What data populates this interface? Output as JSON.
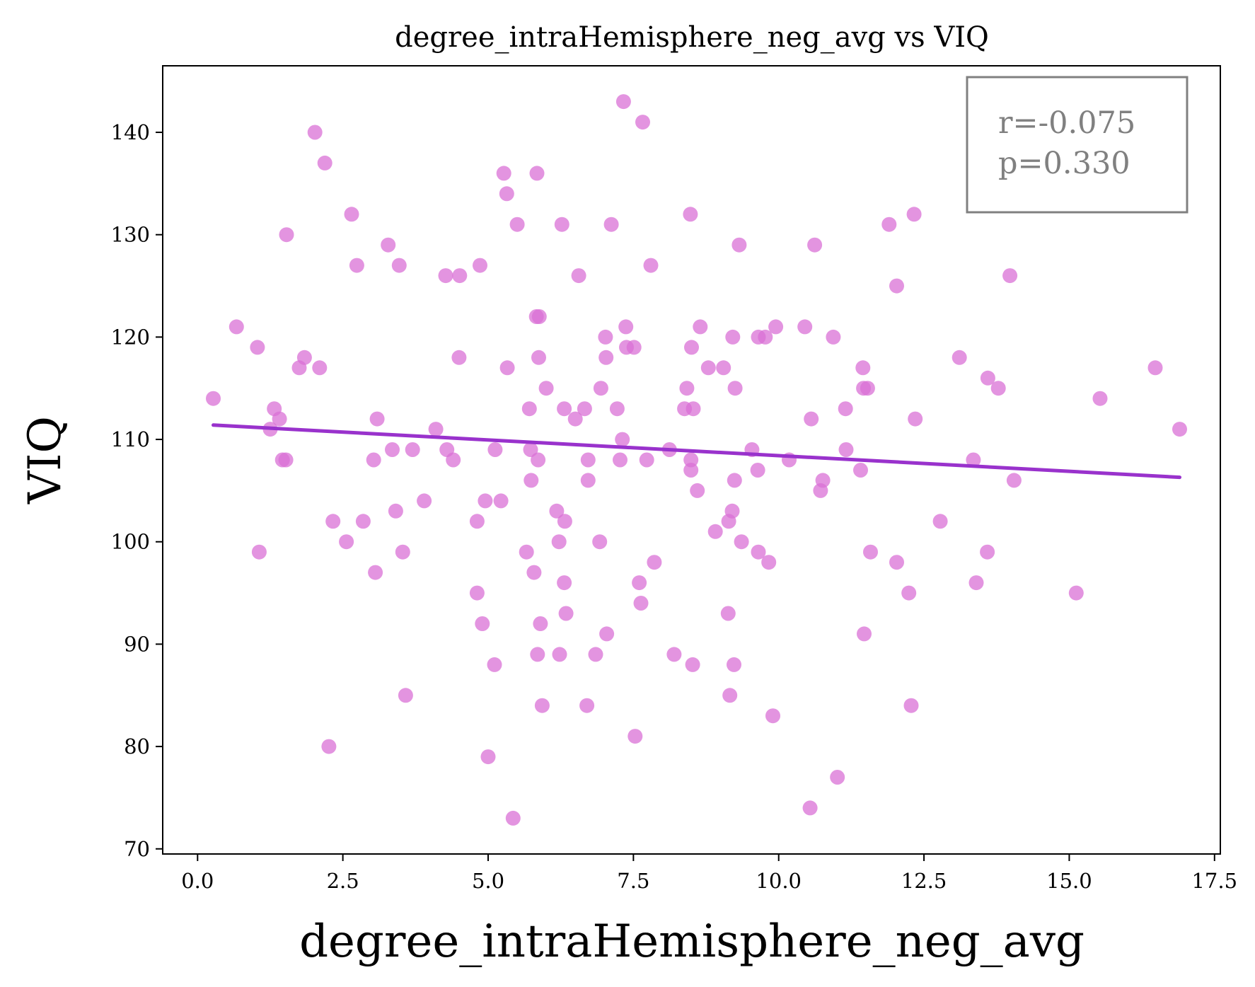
{
  "chart_data": {
    "type": "scatter",
    "title": "degree_intraHemisphere_neg_avg vs VIQ",
    "xlabel": "degree_intraHemisphere_neg_avg",
    "ylabel": "VIQ",
    "xlim": [
      -0.6,
      17.6
    ],
    "ylim": [
      69.5,
      146.5
    ],
    "xticks": [
      0.0,
      2.5,
      5.0,
      7.5,
      10.0,
      12.5,
      15.0,
      17.5
    ],
    "xtick_labels": [
      "0.0",
      "2.5",
      "5.0",
      "7.5",
      "10.0",
      "12.5",
      "15.0",
      "17.5"
    ],
    "yticks": [
      70,
      80,
      90,
      100,
      110,
      120,
      130,
      140
    ],
    "ytick_labels": [
      "70",
      "80",
      "90",
      "100",
      "110",
      "120",
      "130",
      "140"
    ],
    "grid": false,
    "point_color": "#da70d6",
    "line_color": "#9932cc",
    "stats": {
      "r_text": "r=-0.075",
      "p_text": "p=0.330",
      "placement": "top-right"
    },
    "regression": {
      "x": [
        0.27,
        16.9
      ],
      "y": [
        111.4,
        106.3
      ]
    },
    "points": [
      [
        0.27,
        114
      ],
      [
        0.67,
        121
      ],
      [
        1.03,
        119
      ],
      [
        1.06,
        99
      ],
      [
        1.25,
        111
      ],
      [
        1.32,
        113
      ],
      [
        1.41,
        112
      ],
      [
        1.46,
        108
      ],
      [
        1.52,
        108
      ],
      [
        1.53,
        130
      ],
      [
        1.75,
        117
      ],
      [
        1.84,
        118
      ],
      [
        2.02,
        140
      ],
      [
        2.1,
        117
      ],
      [
        2.19,
        137
      ],
      [
        2.26,
        80
      ],
      [
        2.33,
        102
      ],
      [
        2.56,
        100
      ],
      [
        2.65,
        132
      ],
      [
        2.74,
        127
      ],
      [
        2.85,
        102
      ],
      [
        3.03,
        108
      ],
      [
        3.06,
        97
      ],
      [
        3.09,
        112
      ],
      [
        3.28,
        129
      ],
      [
        3.35,
        109
      ],
      [
        3.41,
        103
      ],
      [
        3.47,
        127
      ],
      [
        3.53,
        99
      ],
      [
        3.58,
        85
      ],
      [
        3.7,
        109
      ],
      [
        3.9,
        104
      ],
      [
        4.1,
        111
      ],
      [
        4.27,
        126
      ],
      [
        4.29,
        109
      ],
      [
        4.4,
        108
      ],
      [
        4.5,
        118
      ],
      [
        4.51,
        126
      ],
      [
        4.81,
        102
      ],
      [
        4.81,
        95
      ],
      [
        4.86,
        127
      ],
      [
        4.9,
        92
      ],
      [
        4.95,
        104
      ],
      [
        5.0,
        79
      ],
      [
        5.11,
        88
      ],
      [
        5.12,
        109
      ],
      [
        5.22,
        104
      ],
      [
        5.27,
        136
      ],
      [
        5.32,
        134
      ],
      [
        5.33,
        117
      ],
      [
        5.43,
        73
      ],
      [
        5.5,
        131
      ],
      [
        5.66,
        99
      ],
      [
        5.71,
        113
      ],
      [
        5.73,
        109
      ],
      [
        5.74,
        106
      ],
      [
        5.79,
        97
      ],
      [
        5.83,
        122
      ],
      [
        5.84,
        136
      ],
      [
        5.85,
        89
      ],
      [
        5.86,
        108
      ],
      [
        5.87,
        118
      ],
      [
        5.88,
        122
      ],
      [
        5.9,
        92
      ],
      [
        5.93,
        84
      ],
      [
        6.0,
        115
      ],
      [
        6.18,
        103
      ],
      [
        6.22,
        100
      ],
      [
        6.23,
        89
      ],
      [
        6.27,
        131
      ],
      [
        6.31,
        113
      ],
      [
        6.31,
        96
      ],
      [
        6.32,
        102
      ],
      [
        6.34,
        93
      ],
      [
        6.5,
        112
      ],
      [
        6.56,
        126
      ],
      [
        6.66,
        113
      ],
      [
        6.7,
        84
      ],
      [
        6.72,
        108
      ],
      [
        6.72,
        106
      ],
      [
        6.85,
        89
      ],
      [
        6.92,
        100
      ],
      [
        6.94,
        115
      ],
      [
        7.02,
        120
      ],
      [
        7.03,
        118
      ],
      [
        7.04,
        91
      ],
      [
        7.12,
        131
      ],
      [
        7.22,
        113
      ],
      [
        7.27,
        108
      ],
      [
        7.31,
        110
      ],
      [
        7.33,
        143
      ],
      [
        7.37,
        121
      ],
      [
        7.38,
        119
      ],
      [
        7.51,
        119
      ],
      [
        7.53,
        81
      ],
      [
        7.6,
        96
      ],
      [
        7.63,
        94
      ],
      [
        7.66,
        141
      ],
      [
        7.73,
        108
      ],
      [
        7.8,
        127
      ],
      [
        7.86,
        98
      ],
      [
        8.12,
        109
      ],
      [
        8.2,
        89
      ],
      [
        8.38,
        113
      ],
      [
        8.42,
        115
      ],
      [
        8.48,
        132
      ],
      [
        8.49,
        107
      ],
      [
        8.49,
        108
      ],
      [
        8.5,
        119
      ],
      [
        8.52,
        88
      ],
      [
        8.53,
        113
      ],
      [
        8.6,
        105
      ],
      [
        8.65,
        121
      ],
      [
        8.79,
        117
      ],
      [
        8.91,
        101
      ],
      [
        9.05,
        117
      ],
      [
        9.13,
        93
      ],
      [
        9.14,
        102
      ],
      [
        9.16,
        85
      ],
      [
        9.2,
        103
      ],
      [
        9.21,
        120
      ],
      [
        9.23,
        88
      ],
      [
        9.24,
        106
      ],
      [
        9.25,
        115
      ],
      [
        9.32,
        129
      ],
      [
        9.36,
        100
      ],
      [
        9.54,
        109
      ],
      [
        9.64,
        107
      ],
      [
        9.65,
        120
      ],
      [
        9.65,
        99
      ],
      [
        9.77,
        120
      ],
      [
        9.83,
        98
      ],
      [
        9.9,
        83
      ],
      [
        9.95,
        121
      ],
      [
        10.18,
        108
      ],
      [
        10.45,
        121
      ],
      [
        10.54,
        74
      ],
      [
        10.56,
        112
      ],
      [
        10.62,
        129
      ],
      [
        10.72,
        105
      ],
      [
        10.76,
        106
      ],
      [
        10.94,
        120
      ],
      [
        11.01,
        77
      ],
      [
        11.15,
        113
      ],
      [
        11.16,
        109
      ],
      [
        11.41,
        107
      ],
      [
        11.45,
        117
      ],
      [
        11.46,
        115
      ],
      [
        11.47,
        91
      ],
      [
        11.53,
        115
      ],
      [
        11.58,
        99
      ],
      [
        11.9,
        131
      ],
      [
        12.03,
        98
      ],
      [
        12.03,
        125
      ],
      [
        12.24,
        95
      ],
      [
        12.28,
        84
      ],
      [
        12.33,
        132
      ],
      [
        12.35,
        112
      ],
      [
        12.78,
        102
      ],
      [
        13.11,
        118
      ],
      [
        13.35,
        108
      ],
      [
        13.4,
        96
      ],
      [
        13.59,
        99
      ],
      [
        13.6,
        116
      ],
      [
        13.78,
        115
      ],
      [
        13.98,
        126
      ],
      [
        14.05,
        106
      ],
      [
        15.12,
        95
      ],
      [
        15.53,
        114
      ],
      [
        16.48,
        117
      ],
      [
        16.9,
        111
      ]
    ]
  }
}
